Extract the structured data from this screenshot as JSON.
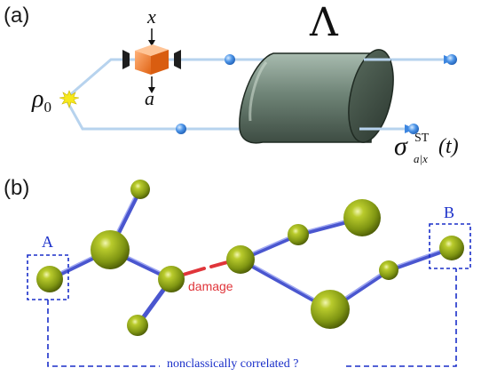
{
  "panel_a": {
    "label": "(a)",
    "input_x": "x",
    "output_a": "a",
    "channel": "Λ",
    "rho": "ρ",
    "rho_sub": "0",
    "sigma": "σ",
    "sigma_sup": "ST",
    "sigma_sub": "a|x",
    "sigma_arg": "(t)"
  },
  "panel_b": {
    "label": "(b)",
    "node_a": "A",
    "node_b": "B",
    "damage": "damage",
    "bottom_caption": "nonclassically correlated ?"
  },
  "colors": {
    "beam": "#aecdeb",
    "ball_blue": "#3d86e0",
    "cylinder_dark": "#4d5e54",
    "cylinder_light": "#a7b9ad",
    "atom_green": "#8fa514",
    "bond_blue": "#5a66d8",
    "damage_red": "#e0353a",
    "dashed_blue": "#1a2fc9",
    "star_yellow": "#f4e313",
    "box_orange": "#f07a2c"
  }
}
